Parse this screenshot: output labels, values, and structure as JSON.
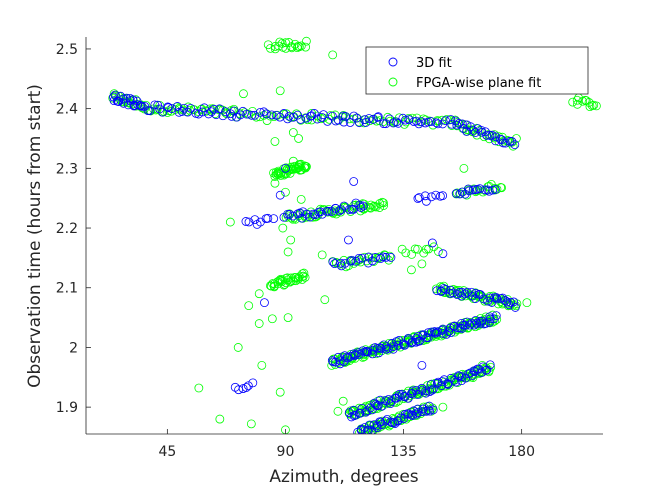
{
  "chart_data": {
    "type": "scatter",
    "title": "",
    "xlabel": "Azimuth, degrees",
    "ylabel": "Observation time (hours from start)",
    "xlim": [
      14,
      211
    ],
    "ylim": [
      1.855,
      2.52
    ],
    "xticks": [
      45,
      90,
      135,
      180
    ],
    "yticks": [
      1.9,
      2.0,
      2.1,
      2.2,
      2.3,
      2.4,
      2.5
    ],
    "xtick_labels": [
      "45",
      "90",
      "135",
      "180"
    ],
    "ytick_labels": [
      "1.9",
      "2",
      "2.1",
      "2.2",
      "2.3",
      "2.4",
      "2.5"
    ],
    "grid": false,
    "legend_position": "top-right",
    "series": [
      {
        "name": "3D fit",
        "color": "#0000ff",
        "marker": "open-circle",
        "segments": [
          {
            "x0": 24,
            "y0": 2.42,
            "x1": 35,
            "y1": 2.405,
            "n": 20
          },
          {
            "x0": 35,
            "y0": 2.402,
            "x1": 70,
            "y1": 2.393,
            "n": 30
          },
          {
            "x0": 70,
            "y0": 2.392,
            "x1": 112,
            "y1": 2.383,
            "n": 30
          },
          {
            "x0": 112,
            "y0": 2.383,
            "x1": 155,
            "y1": 2.376,
            "n": 35
          },
          {
            "x0": 155,
            "y0": 2.374,
            "x1": 177,
            "y1": 2.34,
            "n": 25
          },
          {
            "x0": 75,
            "y0": 2.21,
            "x1": 85,
            "y1": 2.212,
            "n": 8
          },
          {
            "x0": 90,
            "y0": 2.218,
            "x1": 120,
            "y1": 2.238,
            "n": 30
          },
          {
            "x0": 108,
            "y0": 2.138,
            "x1": 130,
            "y1": 2.152,
            "n": 18
          },
          {
            "x0": 140,
            "y0": 2.247,
            "x1": 150,
            "y1": 2.252,
            "n": 8
          },
          {
            "x0": 155,
            "y0": 2.258,
            "x1": 170,
            "y1": 2.268,
            "n": 15
          },
          {
            "x0": 148,
            "y0": 2.1,
            "x1": 178,
            "y1": 2.072,
            "n": 35
          },
          {
            "x0": 108,
            "y0": 1.975,
            "x1": 170,
            "y1": 2.05,
            "n": 90
          },
          {
            "x0": 114,
            "y0": 1.888,
            "x1": 168,
            "y1": 1.965,
            "n": 70
          },
          {
            "x0": 118,
            "y0": 1.858,
            "x1": 146,
            "y1": 1.9,
            "n": 40
          },
          {
            "x0": 71,
            "y0": 1.932,
            "x1": 77,
            "y1": 1.94,
            "n": 6
          }
        ],
        "points": [
          {
            "x": 90,
            "y": 2.3
          },
          {
            "x": 88,
            "y": 2.255
          },
          {
            "x": 82,
            "y": 2.075
          },
          {
            "x": 116,
            "y": 2.278
          },
          {
            "x": 114,
            "y": 2.18
          },
          {
            "x": 146,
            "y": 2.175
          },
          {
            "x": 150,
            "y": 2.157
          },
          {
            "x": 140,
            "y": 2.015
          },
          {
            "x": 142,
            "y": 1.97
          },
          {
            "x": 101,
            "y": 2.392
          }
        ]
      },
      {
        "name": "FPGA-wise plane fit",
        "color": "#00ff00",
        "marker": "open-circle",
        "segments": [
          {
            "x0": 24,
            "y0": 2.42,
            "x1": 35,
            "y1": 2.405,
            "n": 20
          },
          {
            "x0": 35,
            "y0": 2.402,
            "x1": 70,
            "y1": 2.393,
            "n": 40
          },
          {
            "x0": 70,
            "y0": 2.392,
            "x1": 112,
            "y1": 2.383,
            "n": 30
          },
          {
            "x0": 112,
            "y0": 2.383,
            "x1": 155,
            "y1": 2.376,
            "n": 35
          },
          {
            "x0": 155,
            "y0": 2.374,
            "x1": 177,
            "y1": 2.34,
            "n": 30
          },
          {
            "x0": 200,
            "y0": 2.415,
            "x1": 208,
            "y1": 2.405,
            "n": 12
          },
          {
            "x0": 84,
            "y0": 2.505,
            "x1": 98,
            "y1": 2.508,
            "n": 20
          },
          {
            "x0": 86,
            "y0": 2.29,
            "x1": 98,
            "y1": 2.305,
            "n": 45
          },
          {
            "x0": 90,
            "y0": 2.218,
            "x1": 128,
            "y1": 2.24,
            "n": 60
          },
          {
            "x0": 108,
            "y0": 2.138,
            "x1": 130,
            "y1": 2.152,
            "n": 25
          },
          {
            "x0": 155,
            "y0": 2.258,
            "x1": 172,
            "y1": 2.27,
            "n": 20
          },
          {
            "x0": 84,
            "y0": 2.105,
            "x1": 98,
            "y1": 2.12,
            "n": 35
          },
          {
            "x0": 135,
            "y0": 2.16,
            "x1": 148,
            "y1": 2.165,
            "n": 10
          },
          {
            "x0": 148,
            "y0": 2.1,
            "x1": 178,
            "y1": 2.072,
            "n": 60
          },
          {
            "x0": 108,
            "y0": 1.975,
            "x1": 170,
            "y1": 2.05,
            "n": 160
          },
          {
            "x0": 114,
            "y0": 1.888,
            "x1": 168,
            "y1": 1.965,
            "n": 120
          },
          {
            "x0": 118,
            "y0": 1.858,
            "x1": 146,
            "y1": 1.9,
            "n": 60
          }
        ],
        "points": [
          {
            "x": 30,
            "y": 2.41
          },
          {
            "x": 33,
            "y": 2.415
          },
          {
            "x": 57,
            "y": 1.932
          },
          {
            "x": 69,
            "y": 2.21
          },
          {
            "x": 72,
            "y": 2.0
          },
          {
            "x": 74,
            "y": 2.425
          },
          {
            "x": 76,
            "y": 2.07
          },
          {
            "x": 80,
            "y": 2.04
          },
          {
            "x": 81,
            "y": 1.97
          },
          {
            "x": 83,
            "y": 2.38
          },
          {
            "x": 86,
            "y": 2.345
          },
          {
            "x": 88,
            "y": 2.43
          },
          {
            "x": 89,
            "y": 2.2
          },
          {
            "x": 90,
            "y": 2.26
          },
          {
            "x": 91,
            "y": 2.16
          },
          {
            "x": 92,
            "y": 2.18
          },
          {
            "x": 93,
            "y": 2.36
          },
          {
            "x": 85,
            "y": 2.048
          },
          {
            "x": 88,
            "y": 1.925
          },
          {
            "x": 90,
            "y": 1.862
          },
          {
            "x": 91,
            "y": 2.05
          },
          {
            "x": 95,
            "y": 2.35
          },
          {
            "x": 80,
            "y": 2.09
          },
          {
            "x": 108,
            "y": 2.49
          },
          {
            "x": 105,
            "y": 2.08
          },
          {
            "x": 104,
            "y": 2.155
          },
          {
            "x": 112,
            "y": 1.91
          },
          {
            "x": 110,
            "y": 1.893
          },
          {
            "x": 120,
            "y": 2.24
          },
          {
            "x": 138,
            "y": 2.13
          },
          {
            "x": 142,
            "y": 2.14
          },
          {
            "x": 145,
            "y": 1.93
          },
          {
            "x": 150,
            "y": 1.9
          },
          {
            "x": 165,
            "y": 1.97
          },
          {
            "x": 172,
            "y": 2.268
          },
          {
            "x": 182,
            "y": 2.075
          },
          {
            "x": 178,
            "y": 2.35
          },
          {
            "x": 158,
            "y": 2.3
          },
          {
            "x": 65,
            "y": 1.88
          },
          {
            "x": 77,
            "y": 1.872
          },
          {
            "x": 100,
            "y": 2.392
          },
          {
            "x": 93,
            "y": 2.312
          },
          {
            "x": 86,
            "y": 2.275
          },
          {
            "x": 96,
            "y": 2.248
          }
        ]
      }
    ]
  }
}
